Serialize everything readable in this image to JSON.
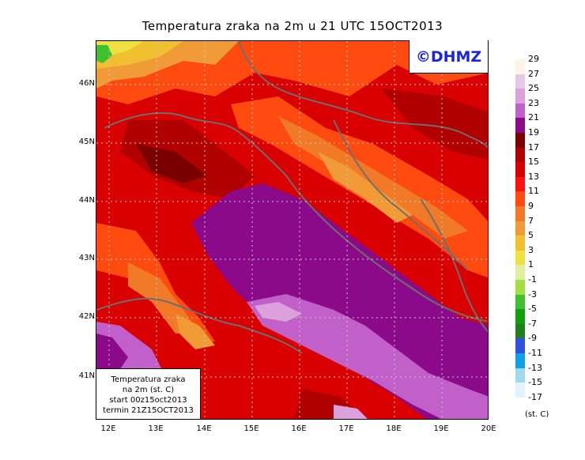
{
  "title": "Temperatura zraka na 2m u 21 UTC 15OCT2013",
  "logo_text": "©DHMZ",
  "info_box": {
    "line1": "Temperatura zraka",
    "line2": "na 2m (st. C)",
    "line3": "start 00z15oct2013",
    "line4": "termin 21Z15OCT2013"
  },
  "y_ticks": [
    "46N",
    "45N",
    "44N",
    "43N",
    "42N",
    "41N"
  ],
  "x_ticks": [
    "12E",
    "13E",
    "14E",
    "15E",
    "16E",
    "17E",
    "18E",
    "19E",
    "20E"
  ],
  "legend": {
    "unit": "(st. C)",
    "labels": [
      "29",
      "27",
      "25",
      "23",
      "21",
      "19",
      "17",
      "15",
      "13",
      "11",
      "9",
      "7",
      "5",
      "3",
      "1",
      "-1",
      "-3",
      "-5",
      "-7",
      "-9",
      "-11",
      "-13",
      "-15",
      "-17"
    ],
    "colors": [
      "#fff3e6",
      "#e6c8e6",
      "#dca0dc",
      "#c060c8",
      "#8a0a8a",
      "#7a0000",
      "#b00000",
      "#d80000",
      "#ff1010",
      "#ff4a10",
      "#f07a28",
      "#f09a38",
      "#f0c030",
      "#f0e040",
      "#e0f0a0",
      "#a0e040",
      "#40c030",
      "#10a010",
      "#208020",
      "#3050e0",
      "#10a0e8",
      "#a0d8f0",
      "#e0f4fc"
    ]
  },
  "map": {
    "lat_range": [
      40.25,
      46.75
    ],
    "lon_range": [
      11.75,
      20.0
    ]
  }
}
